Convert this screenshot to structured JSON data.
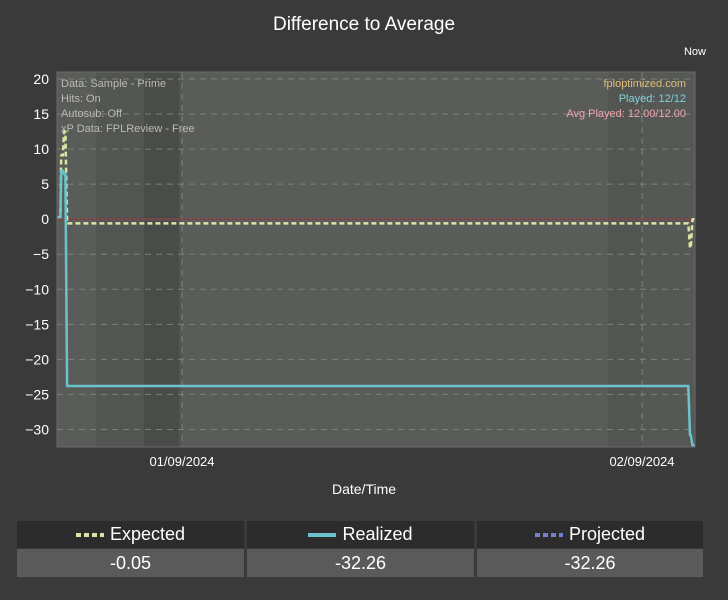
{
  "header": {
    "title": "Difference to Average",
    "now_label": "Now"
  },
  "info_left": [
    "Data: Sample - Prime",
    "Hits: On",
    "Autosub: Off",
    "xP Data: FPLReview - Free"
  ],
  "info_right": [
    {
      "text": "fploptimized.com",
      "color": "#e0bf7a"
    },
    {
      "text": "Played: 12/12",
      "color": "#7fd3de"
    },
    {
      "text": "Avg Played: 12.00/12.00",
      "color": "#f0a6b0"
    }
  ],
  "colors": {
    "expected": "#d7e6a4",
    "realized": "#6cc3cb",
    "projected": "#6f7fd3",
    "zero_line": "#7a4848",
    "plot_bg": "#5a5c59",
    "page_bg": "#3a3a3a"
  },
  "chart_data": {
    "type": "line",
    "title": "Difference to Average",
    "xlabel": "Date/Time",
    "ylabel": "",
    "ylim": [
      -32.5,
      21
    ],
    "y_ticks": [
      20,
      15,
      10,
      5,
      0,
      -5,
      -10,
      -15,
      -20,
      -25,
      -30
    ],
    "y_tick_labels": [
      "20",
      "15",
      "10",
      "5",
      "0",
      "−5",
      "−10",
      "−15",
      "−20",
      "−25",
      "−30"
    ],
    "x_tick_labels": [
      "01/09/2024",
      "02/09/2024"
    ],
    "grid": true,
    "series": [
      {
        "name": "Expected",
        "style": "dashed",
        "x": [
          "01/08/2024 15:00",
          "01/08/2024 17:00",
          "01/08/2024 19:00",
          "01/08/2024 20:00",
          "01/08/2024 22:00",
          "01/08/2024 23:30",
          "01/09/2024 01:00",
          "01/09/2024 03:00",
          "01/09/2024 05:00",
          "02/09/2024 00:00",
          "02/09/2024 02:00",
          "02/09/2024 03:00",
          "02/09/2024 05:00",
          "02/09/2024 06:00",
          "02/09/2024 08:00"
        ],
        "values": [
          0.3,
          0.3,
          0.3,
          9.1,
          9.1,
          12.5,
          12.5,
          -0.6,
          -0.6,
          -0.6,
          -4.1,
          -4.1,
          0,
          0,
          0
        ]
      },
      {
        "name": "Realized",
        "style": "solid",
        "x": [
          "01/08/2024 15:00",
          "01/08/2024 17:00",
          "01/08/2024 19:00",
          "01/08/2024 20:00",
          "01/08/2024 22:00",
          "01/08/2024 23:30",
          "01/09/2024 01:00",
          "01/09/2024 03:00",
          "01/09/2024 05:00",
          "02/09/2024 00:00",
          "02/09/2024 02:00",
          "02/09/2024 03:00",
          "02/09/2024 05:00",
          "02/09/2024 06:00",
          "02/09/2024 08:00"
        ],
        "values": [
          0.3,
          0.3,
          0.3,
          6.9,
          6.9,
          6.4,
          6.4,
          -23.8,
          -23.8,
          -23.8,
          -30.8,
          -30.8,
          -32.26,
          -32.26,
          -32.26
        ]
      }
    ]
  },
  "legend": [
    {
      "label": "Expected",
      "value": "-0.05",
      "style": "dashed",
      "color": "#d7e6a4"
    },
    {
      "label": "Realized",
      "value": "-32.26",
      "style": "solid",
      "color": "#6cc3cb"
    },
    {
      "label": "Projected",
      "value": "-32.26",
      "style": "dashed",
      "color": "#6f7fd3"
    }
  ]
}
